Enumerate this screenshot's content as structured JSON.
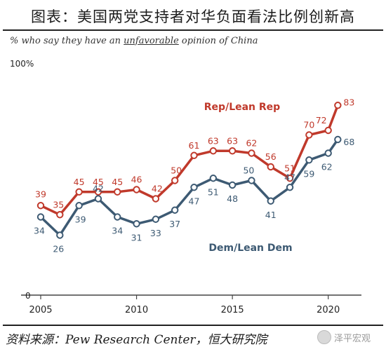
{
  "header": {
    "title": "图表：美国两党支持者对华负面看法比例创新高",
    "subtitle_pre": "% who say they have an ",
    "subtitle_emph": "unfavorable",
    "subtitle_post": " opinion of China"
  },
  "footer": {
    "source": "资料来源：Pew Research Center，恒大研究院",
    "watermark": "泽平宏观",
    "watermark_icon": "wechat-logo-icon"
  },
  "colors": {
    "rep": "#c0392b",
    "dem": "#3d5a73",
    "axis": "#444444"
  },
  "chart_data": {
    "type": "line",
    "title": "",
    "xlabel": "",
    "ylabel": "",
    "y_tick_labels": [
      "100%",
      "0"
    ],
    "ylim": [
      0,
      100
    ],
    "xlim": [
      2005,
      2021
    ],
    "x_ticks": [
      2005,
      2010,
      2015,
      2020
    ],
    "grid": false,
    "legend": "inline labels",
    "series": [
      {
        "name": "Rep/Lean Rep",
        "color": "#c0392b",
        "x": [
          2005,
          2006,
          2007,
          2008,
          2009,
          2010,
          2011,
          2012,
          2013,
          2014,
          2015,
          2016,
          2017,
          2018,
          2019,
          2020,
          2020.5
        ],
        "values": [
          39,
          35,
          45,
          45,
          45,
          46,
          42,
          50,
          61,
          63,
          63,
          62,
          56,
          51,
          70,
          72,
          83
        ]
      },
      {
        "name": "Dem/Lean Dem",
        "color": "#3d5a73",
        "x": [
          2005,
          2006,
          2007,
          2008,
          2009,
          2010,
          2011,
          2012,
          2013,
          2014,
          2015,
          2016,
          2017,
          2018,
          2019,
          2020,
          2020.5
        ],
        "values": [
          34,
          26,
          39,
          42,
          34,
          31,
          33,
          37,
          47,
          51,
          48,
          50,
          41,
          47,
          59,
          62,
          68
        ]
      }
    ]
  }
}
